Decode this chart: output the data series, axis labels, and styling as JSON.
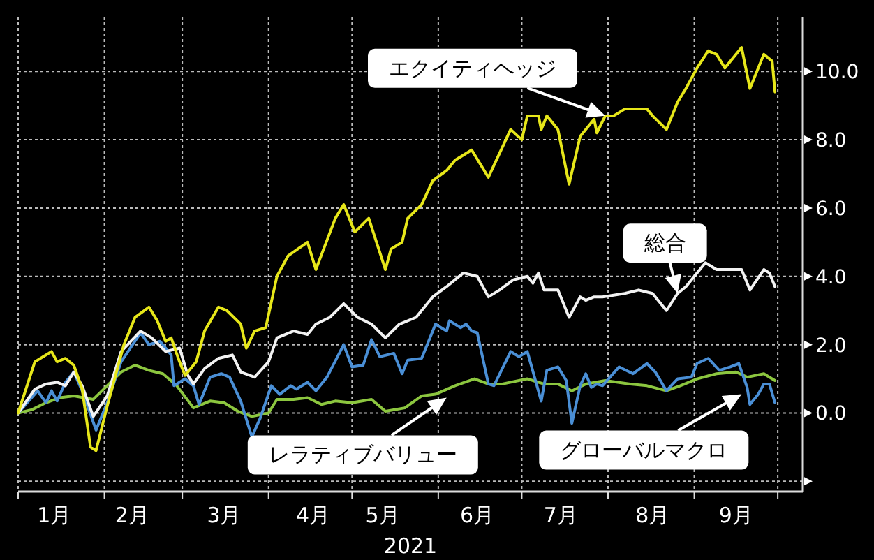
{
  "chart_data": {
    "type": "line",
    "xlabel": "2021",
    "grid": true,
    "marker": "none",
    "line_style": "solid",
    "xlim": [
      "2021-01-01",
      "2021-10-10"
    ],
    "xticks": [
      {
        "value": "2021-01-01",
        "label": null
      },
      {
        "value": "2021-02-01",
        "label": null
      },
      {
        "value": "2021-03-01",
        "label": null
      },
      {
        "value": "2021-04-01",
        "label": null
      },
      {
        "value": "2021-05-01",
        "label": null
      },
      {
        "value": "2021-06-01",
        "label": null
      },
      {
        "value": "2021-07-01",
        "label": null
      },
      {
        "value": "2021-08-01",
        "label": null
      },
      {
        "value": "2021-09-01",
        "label": null
      },
      {
        "value": "2021-10-01",
        "label": null
      },
      {
        "value": "2021-01-14",
        "label": "1月"
      },
      {
        "value": "2021-02-11",
        "label": "2月"
      },
      {
        "value": "2021-03-16",
        "label": "3月"
      },
      {
        "value": "2021-04-17",
        "label": "4月"
      },
      {
        "value": "2021-05-12",
        "label": "5月"
      },
      {
        "value": "2021-06-15",
        "label": "6月"
      },
      {
        "value": "2021-07-15",
        "label": "7月"
      },
      {
        "value": "2021-08-17",
        "label": "8月"
      },
      {
        "value": "2021-09-16",
        "label": "9月"
      }
    ],
    "ylim": [
      -2.3,
      11.6
    ],
    "yticks": [
      {
        "value": -2,
        "label": null
      },
      {
        "value": 0,
        "label": "0.0"
      },
      {
        "value": 2,
        "label": "2.0"
      },
      {
        "value": 4,
        "label": "4.0"
      },
      {
        "value": 6,
        "label": "6.0"
      },
      {
        "value": 8,
        "label": "8.0"
      },
      {
        "value": 10,
        "label": "10.0"
      }
    ],
    "series": [
      {
        "color": "#e6e619",
        "x": [
          "2021-01-01",
          "2021-01-07",
          "2021-01-13",
          "2021-01-15",
          "2021-01-18",
          "2021-01-21",
          "2021-01-24",
          "2021-01-27",
          "2021-01-29",
          "2021-02-02",
          "2021-02-08",
          "2021-02-12",
          "2021-02-17",
          "2021-02-20",
          "2021-02-23",
          "2021-02-25",
          "2021-02-28",
          "2021-03-02",
          "2021-03-06",
          "2021-03-09",
          "2021-03-14",
          "2021-03-17",
          "2021-03-22",
          "2021-03-24",
          "2021-03-27",
          "2021-03-31",
          "2021-04-04",
          "2021-04-08",
          "2021-04-15",
          "2021-04-18",
          "2021-04-25",
          "2021-04-28",
          "2021-05-02",
          "2021-05-07",
          "2021-05-13",
          "2021-05-15",
          "2021-05-19",
          "2021-05-21",
          "2021-05-26",
          "2021-05-30",
          "2021-06-04",
          "2021-06-07",
          "2021-06-13",
          "2021-06-19",
          "2021-06-27",
          "2021-07-01",
          "2021-07-03",
          "2021-07-07",
          "2021-07-08",
          "2021-07-10",
          "2021-07-14",
          "2021-07-18",
          "2021-07-22",
          "2021-07-27",
          "2021-07-28",
          "2021-07-31",
          "2021-08-03",
          "2021-08-07",
          "2021-08-15",
          "2021-08-17",
          "2021-08-22",
          "2021-08-26",
          "2021-08-29",
          "2021-09-02",
          "2021-09-06",
          "2021-09-09",
          "2021-09-12",
          "2021-09-18",
          "2021-09-21",
          "2021-09-26",
          "2021-09-29",
          "2021-09-30"
        ],
        "values": [
          0.0,
          1.5,
          1.8,
          1.5,
          1.6,
          1.4,
          0.7,
          -1.0,
          -1.1,
          0.2,
          2.0,
          2.8,
          3.1,
          2.7,
          2.1,
          2.2,
          1.5,
          1.1,
          1.5,
          2.4,
          3.1,
          3.0,
          2.6,
          1.9,
          2.4,
          2.5,
          4.0,
          4.6,
          5.0,
          4.2,
          5.7,
          6.1,
          5.3,
          5.7,
          4.2,
          4.8,
          5.0,
          5.7,
          6.1,
          6.8,
          7.1,
          7.4,
          7.7,
          6.9,
          8.3,
          8.0,
          8.7,
          8.7,
          8.3,
          8.7,
          8.3,
          6.7,
          8.1,
          8.6,
          8.2,
          8.7,
          8.7,
          8.9,
          8.9,
          8.7,
          8.3,
          9.1,
          9.5,
          10.1,
          10.6,
          10.5,
          10.1,
          10.7,
          9.5,
          10.5,
          10.3,
          9.4
        ]
      },
      {
        "color": "#f2f2f2",
        "x": [
          "2021-01-01",
          "2021-01-07",
          "2021-01-11",
          "2021-01-15",
          "2021-01-18",
          "2021-01-21",
          "2021-01-24",
          "2021-01-28",
          "2021-02-02",
          "2021-02-07",
          "2021-02-14",
          "2021-02-18",
          "2021-02-23",
          "2021-02-28",
          "2021-03-03",
          "2021-03-05",
          "2021-03-09",
          "2021-03-14",
          "2021-03-19",
          "2021-03-22",
          "2021-03-27",
          "2021-04-01",
          "2021-04-04",
          "2021-04-10",
          "2021-04-15",
          "2021-04-18",
          "2021-04-23",
          "2021-04-28",
          "2021-05-03",
          "2021-05-08",
          "2021-05-13",
          "2021-05-18",
          "2021-05-24",
          "2021-05-30",
          "2021-06-04",
          "2021-06-10",
          "2021-06-15",
          "2021-06-19",
          "2021-06-23",
          "2021-06-28",
          "2021-07-03",
          "2021-07-05",
          "2021-07-07",
          "2021-07-09",
          "2021-07-14",
          "2021-07-18",
          "2021-07-22",
          "2021-07-24",
          "2021-07-27",
          "2021-07-30",
          "2021-08-07",
          "2021-08-12",
          "2021-08-17",
          "2021-08-22",
          "2021-08-26",
          "2021-08-29",
          "2021-09-01",
          "2021-09-05",
          "2021-09-09",
          "2021-09-14",
          "2021-09-18",
          "2021-09-21",
          "2021-09-26",
          "2021-09-28",
          "2021-09-30"
        ],
        "values": [
          0.0,
          0.7,
          0.85,
          0.9,
          0.8,
          1.2,
          0.8,
          -0.1,
          0.5,
          1.8,
          2.4,
          2.2,
          1.8,
          1.9,
          1.1,
          0.85,
          1.3,
          1.6,
          1.7,
          1.2,
          1.05,
          1.5,
          2.2,
          2.4,
          2.3,
          2.6,
          2.8,
          3.2,
          2.8,
          2.6,
          2.2,
          2.6,
          2.8,
          3.4,
          3.7,
          4.1,
          4.0,
          3.4,
          3.6,
          3.9,
          4.0,
          3.8,
          4.1,
          3.6,
          3.6,
          2.8,
          3.4,
          3.3,
          3.4,
          3.4,
          3.5,
          3.6,
          3.5,
          3.0,
          3.5,
          3.7,
          4.0,
          4.4,
          4.2,
          4.2,
          4.2,
          3.6,
          4.2,
          4.1,
          3.7
        ]
      },
      {
        "color": "#4a8fd6",
        "x": [
          "2021-01-01",
          "2021-01-08",
          "2021-01-11",
          "2021-01-13",
          "2021-01-15",
          "2021-01-18",
          "2021-01-21",
          "2021-01-24",
          "2021-01-29",
          "2021-02-02",
          "2021-02-07",
          "2021-02-14",
          "2021-02-17",
          "2021-02-21",
          "2021-02-25",
          "2021-02-26",
          "2021-03-02",
          "2021-03-05",
          "2021-03-07",
          "2021-03-11",
          "2021-03-15",
          "2021-03-18",
          "2021-03-22",
          "2021-03-26",
          "2021-03-29",
          "2021-04-02",
          "2021-04-05",
          "2021-04-09",
          "2021-04-11",
          "2021-04-15",
          "2021-04-18",
          "2021-04-22",
          "2021-04-28",
          "2021-05-01",
          "2021-05-05",
          "2021-05-08",
          "2021-05-11",
          "2021-05-16",
          "2021-05-19",
          "2021-05-21",
          "2021-05-26",
          "2021-05-28",
          "2021-05-31",
          "2021-06-04",
          "2021-06-05",
          "2021-06-09",
          "2021-06-11",
          "2021-06-13",
          "2021-06-15",
          "2021-06-19",
          "2021-06-21",
          "2021-06-27",
          "2021-06-30",
          "2021-07-03",
          "2021-07-08",
          "2021-07-10",
          "2021-07-14",
          "2021-07-17",
          "2021-07-19",
          "2021-07-22",
          "2021-07-24",
          "2021-07-26",
          "2021-07-28",
          "2021-07-30",
          "2021-08-05",
          "2021-08-10",
          "2021-08-15",
          "2021-08-18",
          "2021-08-22",
          "2021-08-26",
          "2021-08-31",
          "2021-09-02",
          "2021-09-06",
          "2021-09-10",
          "2021-09-14",
          "2021-09-17",
          "2021-09-20",
          "2021-09-21",
          "2021-09-24",
          "2021-09-26",
          "2021-09-28",
          "2021-09-30"
        ],
        "values": [
          0.0,
          0.65,
          0.3,
          0.65,
          0.35,
          0.9,
          1.2,
          0.65,
          -0.5,
          0.3,
          1.5,
          2.35,
          2.0,
          2.1,
          1.7,
          0.8,
          1.0,
          0.8,
          0.25,
          1.05,
          1.15,
          1.05,
          0.35,
          -0.7,
          -0.15,
          0.8,
          0.55,
          0.8,
          0.7,
          0.9,
          0.65,
          1.05,
          2.0,
          1.35,
          1.4,
          2.15,
          1.65,
          1.75,
          1.15,
          1.55,
          1.6,
          2.0,
          2.6,
          2.4,
          2.7,
          2.5,
          2.6,
          2.4,
          2.35,
          0.85,
          0.8,
          1.8,
          1.65,
          1.8,
          0.35,
          1.25,
          1.35,
          0.95,
          -0.3,
          0.8,
          1.15,
          0.75,
          0.85,
          0.8,
          1.35,
          1.15,
          1.45,
          1.2,
          0.65,
          1.0,
          1.05,
          1.45,
          1.6,
          1.25,
          1.35,
          1.45,
          0.75,
          0.25,
          0.55,
          0.85,
          0.85,
          0.3
        ]
      },
      {
        "color": "#8cc63f",
        "x": [
          "2021-01-01",
          "2021-01-06",
          "2021-01-11",
          "2021-01-16",
          "2021-01-21",
          "2021-01-28",
          "2021-02-02",
          "2021-02-07",
          "2021-02-12",
          "2021-02-17",
          "2021-02-22",
          "2021-02-27",
          "2021-03-05",
          "2021-03-11",
          "2021-03-16",
          "2021-03-21",
          "2021-03-26",
          "2021-04-01",
          "2021-04-04",
          "2021-04-10",
          "2021-04-15",
          "2021-04-20",
          "2021-04-25",
          "2021-05-01",
          "2021-05-08",
          "2021-05-13",
          "2021-05-20",
          "2021-05-26",
          "2021-05-31",
          "2021-06-07",
          "2021-06-14",
          "2021-06-19",
          "2021-06-24",
          "2021-07-03",
          "2021-07-09",
          "2021-07-14",
          "2021-07-19",
          "2021-07-24",
          "2021-07-31",
          "2021-08-09",
          "2021-08-15",
          "2021-08-22",
          "2021-08-27",
          "2021-09-02",
          "2021-09-09",
          "2021-09-16",
          "2021-09-20",
          "2021-09-26",
          "2021-09-30"
        ],
        "values": [
          0.0,
          0.1,
          0.3,
          0.45,
          0.5,
          0.4,
          0.8,
          1.2,
          1.4,
          1.25,
          1.15,
          0.8,
          0.15,
          0.35,
          0.3,
          0.05,
          -0.1,
          0.0,
          0.4,
          0.4,
          0.45,
          0.25,
          0.35,
          0.3,
          0.4,
          0.05,
          0.15,
          0.5,
          0.55,
          0.8,
          1.0,
          0.85,
          0.85,
          1.0,
          0.85,
          0.85,
          0.65,
          0.85,
          0.95,
          0.85,
          0.8,
          0.65,
          0.8,
          1.0,
          1.15,
          1.2,
          1.05,
          1.15,
          0.95
        ]
      }
    ],
    "annotations": [
      {
        "text": "エクイティヘッジ",
        "x": "2021-07-31",
        "y": 8.7
      },
      {
        "text": "総合",
        "x": "2021-08-26",
        "y": 3.5
      },
      {
        "text": "レラティブバリュー",
        "x": "2021-06-04",
        "y": 0.45
      },
      {
        "text": "グローバルマクロ",
        "x": "2021-09-18",
        "y": 0.55
      }
    ]
  }
}
